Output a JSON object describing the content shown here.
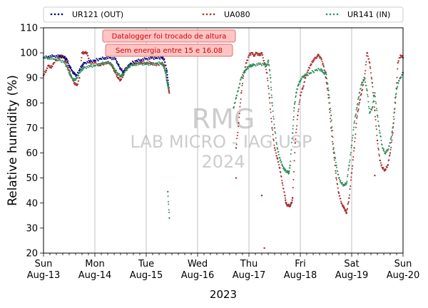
{
  "chart_data": {
    "type": "scatter",
    "ylabel": "Relative humidity (%)",
    "xlabel": "2023",
    "ylim": [
      20,
      110
    ],
    "yticks": [
      20,
      30,
      40,
      50,
      60,
      70,
      80,
      90,
      100,
      110
    ],
    "xlim": [
      0,
      7
    ],
    "xticks": [
      {
        "x": 0,
        "day": "Sun",
        "date": "Aug-13"
      },
      {
        "x": 1,
        "day": "Mon",
        "date": "Aug-14"
      },
      {
        "x": 2,
        "day": "Tue",
        "date": "Aug-15"
      },
      {
        "x": 3,
        "day": "Wed",
        "date": "Aug-16"
      },
      {
        "x": 4,
        "day": "Thu",
        "date": "Aug-17"
      },
      {
        "x": 5,
        "day": "Fri",
        "date": "Aug-18"
      },
      {
        "x": 6,
        "day": "Sat",
        "date": "Aug-19"
      },
      {
        "x": 7,
        "day": "Sun",
        "date": "Aug-20"
      }
    ],
    "grid": "vertical",
    "legend_placement": "top",
    "series": [
      {
        "name": "UR121 (OUT)",
        "color": "#00007a",
        "points": [
          [
            0,
            98
          ],
          [
            0.1,
            98.5
          ],
          [
            0.2,
            98.7
          ],
          [
            0.3,
            98.6
          ],
          [
            0.4,
            98.3
          ],
          [
            0.45,
            97.5
          ],
          [
            0.5,
            95
          ],
          [
            0.55,
            93
          ],
          [
            0.6,
            91.5
          ],
          [
            0.65,
            91
          ],
          [
            0.7,
            93
          ],
          [
            0.75,
            95
          ],
          [
            0.8,
            96
          ],
          [
            0.9,
            96.5
          ],
          [
            1.0,
            97
          ],
          [
            1.1,
            97.5
          ],
          [
            1.2,
            98
          ],
          [
            1.3,
            98
          ],
          [
            1.4,
            97.5
          ],
          [
            1.45,
            95.5
          ],
          [
            1.5,
            93.5
          ],
          [
            1.55,
            92.5
          ],
          [
            1.6,
            93
          ],
          [
            1.65,
            94.5
          ],
          [
            1.7,
            95.8
          ],
          [
            1.8,
            96.7
          ],
          [
            1.9,
            97.2
          ],
          [
            2.0,
            97.6
          ],
          [
            2.1,
            97.9
          ],
          [
            2.2,
            98
          ],
          [
            2.3,
            98
          ],
          [
            2.35,
            97.5
          ],
          [
            2.4,
            93
          ],
          [
            2.42,
            89
          ],
          [
            2.44,
            86
          ]
        ]
      },
      {
        "name": "UA080",
        "color": "#a52a2a",
        "points": [
          [
            0,
            91
          ],
          [
            0.05,
            93
          ],
          [
            0.1,
            95
          ],
          [
            0.15,
            94
          ],
          [
            0.2,
            96
          ],
          [
            0.3,
            98
          ],
          [
            0.35,
            99
          ],
          [
            0.4,
            98
          ],
          [
            0.45,
            96
          ],
          [
            0.5,
            93
          ],
          [
            0.55,
            90
          ],
          [
            0.6,
            88
          ],
          [
            0.65,
            87
          ],
          [
            0.7,
            90
          ],
          [
            0.75,
            100
          ],
          [
            0.8,
            100
          ],
          [
            0.85,
            100
          ],
          [
            0.9,
            96
          ],
          [
            1.0,
            96
          ],
          [
            1.1,
            95
          ],
          [
            1.2,
            96
          ],
          [
            1.3,
            96
          ],
          [
            1.35,
            94
          ],
          [
            1.4,
            92
          ],
          [
            1.45,
            90
          ],
          [
            1.5,
            89
          ],
          [
            1.55,
            91
          ],
          [
            1.6,
            94
          ],
          [
            1.7,
            95
          ],
          [
            1.8,
            96
          ],
          [
            1.9,
            96
          ],
          [
            2.0,
            96
          ],
          [
            2.1,
            96
          ],
          [
            2.2,
            95
          ],
          [
            2.3,
            96
          ],
          [
            2.35,
            95
          ],
          [
            2.4,
            90
          ],
          [
            2.43,
            86
          ],
          [
            2.45,
            84
          ],
          [
            3.75,
            62
          ],
          [
            3.8,
            72
          ],
          [
            3.85,
            84
          ],
          [
            3.9,
            92
          ],
          [
            3.95,
            96
          ],
          [
            4.0,
            99
          ],
          [
            4.05,
            100
          ],
          [
            4.1,
            99
          ],
          [
            4.15,
            100
          ],
          [
            4.2,
            99
          ],
          [
            4.25,
            100
          ],
          [
            4.3,
            96
          ],
          [
            4.35,
            92
          ],
          [
            4.4,
            82
          ],
          [
            4.45,
            70
          ],
          [
            4.5,
            62
          ],
          [
            4.55,
            58
          ],
          [
            4.6,
            54
          ],
          [
            4.65,
            48
          ],
          [
            4.7,
            43
          ],
          [
            4.72,
            40
          ],
          [
            4.75,
            39
          ],
          [
            4.8,
            39
          ],
          [
            4.83,
            40
          ],
          [
            4.85,
            42
          ],
          [
            4.9,
            64
          ],
          [
            4.95,
            75
          ],
          [
            5.0,
            83
          ],
          [
            5.05,
            86
          ],
          [
            5.1,
            90
          ],
          [
            5.15,
            93
          ],
          [
            5.2,
            95
          ],
          [
            5.25,
            97
          ],
          [
            5.3,
            98
          ],
          [
            5.35,
            99
          ],
          [
            5.4,
            98
          ],
          [
            5.45,
            95
          ],
          [
            5.5,
            90
          ],
          [
            5.55,
            82
          ],
          [
            5.6,
            70
          ],
          [
            5.65,
            60
          ],
          [
            5.7,
            50
          ],
          [
            5.75,
            44
          ],
          [
            5.8,
            40
          ],
          [
            5.85,
            38
          ],
          [
            5.88,
            37
          ],
          [
            5.9,
            36
          ],
          [
            5.95,
            42
          ],
          [
            6.0,
            52
          ],
          [
            6.05,
            62
          ],
          [
            6.1,
            74
          ],
          [
            6.15,
            80
          ],
          [
            6.2,
            85
          ],
          [
            6.25,
            90
          ],
          [
            6.3,
            100
          ],
          [
            6.35,
            96
          ],
          [
            6.4,
            88
          ],
          [
            6.45,
            77
          ],
          [
            6.5,
            65
          ],
          [
            6.55,
            57
          ],
          [
            6.6,
            54
          ],
          [
            6.65,
            53
          ],
          [
            6.7,
            55
          ],
          [
            6.75,
            60
          ],
          [
            6.8,
            68
          ],
          [
            6.85,
            80
          ],
          [
            6.9,
            96
          ],
          [
            6.95,
            99
          ],
          [
            7.0,
            98
          ],
          [
            3.75,
            50
          ],
          [
            4.3,
            22
          ],
          [
            4.25,
            43
          ],
          [
            6.45,
            51
          ]
        ]
      },
      {
        "name": "UR141 (IN)",
        "color": "#2e8b57",
        "points": [
          [
            0,
            98
          ],
          [
            0.1,
            98
          ],
          [
            0.2,
            97.5
          ],
          [
            0.3,
            97
          ],
          [
            0.4,
            96.5
          ],
          [
            0.45,
            94.5
          ],
          [
            0.5,
            92
          ],
          [
            0.55,
            90
          ],
          [
            0.6,
            89
          ],
          [
            0.65,
            90
          ],
          [
            0.7,
            92
          ],
          [
            0.75,
            93.5
          ],
          [
            0.8,
            94.2
          ],
          [
            0.9,
            94.5
          ],
          [
            1.0,
            95
          ],
          [
            1.1,
            95.5
          ],
          [
            1.2,
            96
          ],
          [
            1.3,
            96
          ],
          [
            1.35,
            94.5
          ],
          [
            1.4,
            93
          ],
          [
            1.45,
            91.5
          ],
          [
            1.5,
            90.8
          ],
          [
            1.55,
            91.5
          ],
          [
            1.6,
            93
          ],
          [
            1.65,
            94.2
          ],
          [
            1.7,
            95
          ],
          [
            1.8,
            95.5
          ],
          [
            1.9,
            95.6
          ],
          [
            2.0,
            95.5
          ],
          [
            2.1,
            95.5
          ],
          [
            2.2,
            95.7
          ],
          [
            2.3,
            96
          ],
          [
            2.35,
            94
          ],
          [
            2.38,
            92
          ],
          [
            2.4,
            89
          ],
          [
            2.42,
            87
          ],
          [
            2.44,
            86
          ],
          [
            2.42,
            44.5
          ],
          [
            2.45,
            34
          ],
          [
            3.7,
            78
          ],
          [
            3.75,
            82
          ],
          [
            3.8,
            86
          ],
          [
            3.85,
            90
          ],
          [
            3.9,
            92
          ],
          [
            3.95,
            93.5
          ],
          [
            4.0,
            94.5
          ],
          [
            4.05,
            95
          ],
          [
            4.1,
            95.2
          ],
          [
            4.2,
            95.4
          ],
          [
            4.3,
            95.5
          ],
          [
            4.35,
            95
          ],
          [
            4.38,
            97
          ],
          [
            4.42,
            90
          ],
          [
            4.45,
            80
          ],
          [
            4.5,
            70
          ],
          [
            4.55,
            62
          ],
          [
            4.6,
            58
          ],
          [
            4.65,
            55
          ],
          [
            4.7,
            53
          ],
          [
            4.75,
            52.5
          ],
          [
            4.78,
            52
          ],
          [
            4.8,
            55
          ],
          [
            4.85,
            68
          ],
          [
            4.88,
            78
          ],
          [
            4.92,
            84
          ],
          [
            4.96,
            87
          ],
          [
            5.0,
            89
          ],
          [
            5.05,
            90.5
          ],
          [
            5.1,
            91
          ],
          [
            5.2,
            92
          ],
          [
            5.3,
            93
          ],
          [
            5.4,
            93.5
          ],
          [
            5.45,
            92
          ],
          [
            5.5,
            92
          ],
          [
            5.55,
            85
          ],
          [
            5.6,
            75
          ],
          [
            5.65,
            62
          ],
          [
            5.7,
            55
          ],
          [
            5.75,
            50
          ],
          [
            5.8,
            48
          ],
          [
            5.85,
            47
          ],
          [
            5.9,
            48
          ],
          [
            5.95,
            55
          ],
          [
            6.0,
            63
          ],
          [
            6.05,
            72
          ],
          [
            6.1,
            78
          ],
          [
            6.15,
            84
          ],
          [
            6.2,
            88
          ],
          [
            6.25,
            90
          ],
          [
            6.3,
            85
          ],
          [
            6.35,
            76
          ],
          [
            6.4,
            78
          ],
          [
            6.45,
            84
          ],
          [
            6.5,
            75
          ],
          [
            6.55,
            68
          ],
          [
            6.6,
            62
          ],
          [
            6.65,
            60
          ],
          [
            6.7,
            61
          ],
          [
            6.75,
            64
          ],
          [
            6.8,
            70
          ],
          [
            6.85,
            82
          ],
          [
            6.9,
            88
          ],
          [
            6.95,
            90
          ],
          [
            7.0,
            92
          ]
        ]
      }
    ],
    "annotations": [
      "Datalogger foi trocado de altura",
      "Sem energia entre 15 e 16.08"
    ],
    "watermark": [
      "RMG",
      "LAB MICRO - IAG USP",
      "2024"
    ]
  }
}
